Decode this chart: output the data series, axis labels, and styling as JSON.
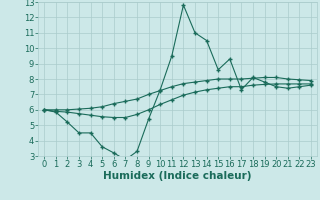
{
  "xlabel": "Humidex (Indice chaleur)",
  "ylabel": "",
  "xlim": [
    -0.5,
    23.5
  ],
  "ylim": [
    3,
    13
  ],
  "xticks": [
    0,
    1,
    2,
    3,
    4,
    5,
    6,
    7,
    8,
    9,
    10,
    11,
    12,
    13,
    14,
    15,
    16,
    17,
    18,
    19,
    20,
    21,
    22,
    23
  ],
  "yticks": [
    3,
    4,
    5,
    6,
    7,
    8,
    9,
    10,
    11,
    12,
    13
  ],
  "bg_color": "#cce8e8",
  "line_color": "#1a6b5a",
  "grid_color": "#aacccc",
  "line1_x": [
    0,
    1,
    2,
    3,
    4,
    5,
    6,
    7,
    8,
    9,
    10,
    11,
    12,
    13,
    14,
    15,
    16,
    17,
    18,
    19,
    20,
    21,
    22,
    23
  ],
  "line1_y": [
    6.0,
    5.85,
    5.2,
    4.5,
    4.5,
    3.6,
    3.2,
    2.75,
    3.3,
    5.4,
    7.3,
    9.5,
    12.8,
    11.0,
    10.5,
    8.6,
    9.3,
    7.3,
    8.1,
    7.8,
    7.5,
    7.4,
    7.5,
    7.6
  ],
  "line2_x": [
    0,
    1,
    2,
    3,
    4,
    5,
    6,
    7,
    8,
    9,
    10,
    11,
    12,
    13,
    14,
    15,
    16,
    17,
    18,
    19,
    20,
    21,
    22,
    23
  ],
  "line2_y": [
    6.0,
    5.9,
    5.85,
    5.75,
    5.65,
    5.55,
    5.5,
    5.5,
    5.7,
    6.0,
    6.35,
    6.65,
    6.95,
    7.15,
    7.3,
    7.4,
    7.5,
    7.5,
    7.6,
    7.65,
    7.68,
    7.68,
    7.68,
    7.68
  ],
  "line3_x": [
    0,
    1,
    2,
    3,
    4,
    5,
    6,
    7,
    8,
    9,
    10,
    11,
    12,
    13,
    14,
    15,
    16,
    17,
    18,
    19,
    20,
    21,
    22,
    23
  ],
  "line3_y": [
    6.0,
    6.0,
    6.0,
    6.05,
    6.1,
    6.2,
    6.4,
    6.55,
    6.7,
    7.0,
    7.25,
    7.5,
    7.7,
    7.8,
    7.9,
    8.0,
    8.0,
    8.0,
    8.05,
    8.1,
    8.1,
    8.0,
    7.95,
    7.9
  ],
  "tick_fontsize": 6,
  "label_fontsize": 7.5
}
